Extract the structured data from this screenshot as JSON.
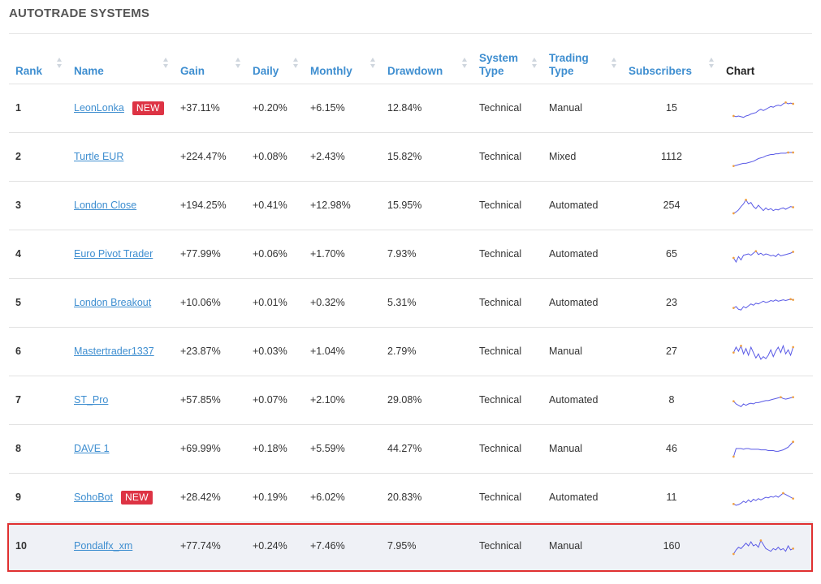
{
  "page_title": "AUTOTRADE SYSTEMS",
  "columns": {
    "rank": "Rank",
    "name": "Name",
    "gain": "Gain",
    "daily": "Daily",
    "monthly": "Monthly",
    "drawdown": "Drawdown",
    "system_type": "System Type",
    "trading_type": "Trading Type",
    "subscribers": "Subscribers",
    "chart": "Chart"
  },
  "new_badge_label": "NEW",
  "colors": {
    "accent_blue": "#3e8ed0",
    "gain_green": "#2e9a3e",
    "badge_red": "#dd3344",
    "highlight_border": "#e03030",
    "sparkline_line": "#5a5ae6",
    "sparkline_marker": "#f0a040"
  },
  "rows": [
    {
      "rank": "1",
      "name": "LeonLonka",
      "is_new": true,
      "gain": "+37.11%",
      "daily": "+0.20%",
      "monthly": "+6.15%",
      "drawdown": "12.84%",
      "system_type": "Technical",
      "trading_type": "Manual",
      "subscribers": "15",
      "spark": [
        30,
        31,
        30,
        31,
        32,
        30,
        29,
        27,
        26,
        25,
        22,
        20,
        22,
        20,
        18,
        16,
        17,
        15,
        14,
        15,
        12,
        10,
        12,
        11,
        12
      ]
    },
    {
      "rank": "2",
      "name": "Turtle EUR",
      "is_new": false,
      "gain": "+224.47%",
      "daily": "+0.08%",
      "monthly": "+2.43%",
      "drawdown": "15.82%",
      "system_type": "Technical",
      "trading_type": "Mixed",
      "subscribers": "1112",
      "spark": [
        32,
        31,
        30,
        29,
        28,
        28,
        27,
        26,
        25,
        23,
        21,
        20,
        19,
        17,
        16,
        15,
        15,
        14,
        14,
        13,
        13,
        13,
        12,
        12,
        12
      ]
    },
    {
      "rank": "3",
      "name": "London Close",
      "is_new": false,
      "gain": "+194.25%",
      "daily": "+0.41%",
      "monthly": "+12.98%",
      "drawdown": "15.95%",
      "system_type": "Technical",
      "trading_type": "Automated",
      "subscribers": "254",
      "spark": [
        30,
        28,
        25,
        20,
        16,
        10,
        16,
        14,
        20,
        23,
        18,
        22,
        26,
        22,
        25,
        23,
        26,
        24,
        25,
        23,
        22,
        24,
        22,
        20,
        21
      ]
    },
    {
      "rank": "4",
      "name": "Euro Pivot Trader",
      "is_new": false,
      "gain": "+77.99%",
      "daily": "+0.06%",
      "monthly": "+1.70%",
      "drawdown": "7.93%",
      "system_type": "Technical",
      "trading_type": "Automated",
      "subscribers": "65",
      "spark": [
        24,
        30,
        22,
        27,
        20,
        19,
        18,
        20,
        17,
        14,
        19,
        17,
        20,
        18,
        19,
        21,
        20,
        22,
        18,
        21,
        20,
        19,
        18,
        17,
        15
      ]
    },
    {
      "rank": "5",
      "name": "London Breakout",
      "is_new": false,
      "gain": "+10.06%",
      "daily": "+0.01%",
      "monthly": "+0.32%",
      "drawdown": "5.31%",
      "system_type": "Technical",
      "trading_type": "Automated",
      "subscribers": "23",
      "spark": [
        26,
        24,
        28,
        29,
        24,
        26,
        23,
        20,
        22,
        19,
        20,
        18,
        16,
        18,
        17,
        15,
        16,
        14,
        16,
        15,
        14,
        15,
        14,
        13,
        14
      ]
    },
    {
      "rank": "6",
      "name": "Mastertrader1337",
      "is_new": false,
      "gain": "+23.87%",
      "daily": "+0.03%",
      "monthly": "+1.04%",
      "drawdown": "2.79%",
      "system_type": "Technical",
      "trading_type": "Manual",
      "subscribers": "27",
      "spark": [
        20,
        12,
        18,
        10,
        22,
        14,
        24,
        12,
        20,
        28,
        22,
        30,
        26,
        29,
        24,
        16,
        26,
        18,
        12,
        20,
        10,
        22,
        16,
        24,
        12
      ]
    },
    {
      "rank": "7",
      "name": "ST_Pro",
      "is_new": false,
      "gain": "+57.85%",
      "daily": "+0.07%",
      "monthly": "+2.10%",
      "drawdown": "29.08%",
      "system_type": "Technical",
      "trading_type": "Automated",
      "subscribers": "8",
      "spark": [
        20,
        24,
        26,
        28,
        24,
        26,
        24,
        23,
        24,
        22,
        22,
        21,
        20,
        19,
        19,
        18,
        17,
        16,
        15,
        14,
        16,
        17,
        16,
        15,
        14
      ]
    },
    {
      "rank": "8",
      "name": "DAVE 1",
      "is_new": false,
      "gain": "+69.99%",
      "daily": "+0.18%",
      "monthly": "+5.59%",
      "drawdown": "44.27%",
      "system_type": "Technical",
      "trading_type": "Manual",
      "subscribers": "46",
      "spark": [
        30,
        18,
        18,
        18,
        19,
        18,
        18,
        19,
        19,
        19,
        19,
        20,
        20,
        20,
        21,
        21,
        21,
        22,
        22,
        21,
        20,
        18,
        16,
        12,
        8
      ]
    },
    {
      "rank": "9",
      "name": "SohoBot",
      "is_new": true,
      "gain": "+28.42%",
      "daily": "+0.19%",
      "monthly": "+6.02%",
      "drawdown": "20.83%",
      "system_type": "Technical",
      "trading_type": "Automated",
      "subscribers": "11",
      "spark": [
        28,
        30,
        29,
        27,
        24,
        26,
        22,
        25,
        21,
        23,
        20,
        22,
        20,
        18,
        19,
        17,
        18,
        16,
        18,
        15,
        12,
        14,
        16,
        18,
        20
      ]
    },
    {
      "rank": "10",
      "name": "Pondalfx_xm",
      "is_new": false,
      "gain": "+77.74%",
      "daily": "+0.24%",
      "monthly": "+7.46%",
      "drawdown": "7.95%",
      "system_type": "Technical",
      "trading_type": "Manual",
      "subscribers": "160",
      "spark": [
        30,
        24,
        20,
        22,
        18,
        14,
        18,
        12,
        18,
        16,
        20,
        10,
        16,
        22,
        24,
        26,
        22,
        24,
        20,
        24,
        22,
        26,
        18,
        24,
        22
      ]
    }
  ]
}
